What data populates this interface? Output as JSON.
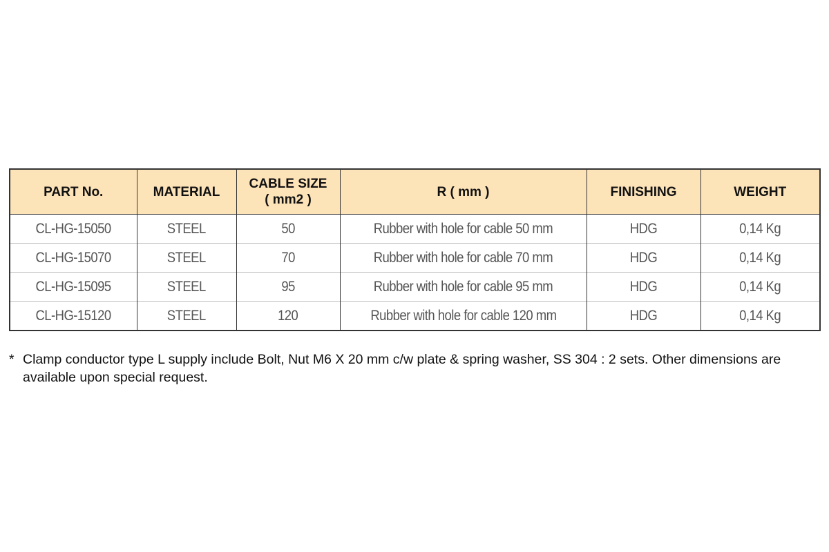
{
  "table": {
    "headers": [
      "PART No.",
      "MATERIAL",
      "CABLE SIZE\n( mm2 )",
      "R ( mm )",
      "FINISHING",
      "WEIGHT"
    ],
    "header_cable_line1": "CABLE SIZE",
    "header_cable_line2": "( mm2 )",
    "rows": [
      [
        "CL-HG-15050",
        "STEEL",
        "50",
        "Rubber with hole for cable 50 mm",
        "HDG",
        "0,14 Kg"
      ],
      [
        "CL-HG-15070",
        "STEEL",
        "70",
        "Rubber with hole for cable 70 mm",
        "HDG",
        "0,14 Kg"
      ],
      [
        "CL-HG-15095",
        "STEEL",
        "95",
        "Rubber with hole for cable 95 mm",
        "HDG",
        "0,14 Kg"
      ],
      [
        "CL-HG-15120",
        "STEEL",
        "120",
        "Rubber with hole for cable 120 mm",
        "HDG",
        "0,14 Kg"
      ]
    ]
  },
  "note": {
    "marker": "*",
    "text": "Clamp conductor type L supply include Bolt, Nut M6 X 20 mm c/w plate & spring washer, SS 304 : 2 sets. Other dimensions are available upon special request."
  },
  "colors": {
    "header_bg": "#fde3b8",
    "border": "#333333",
    "body_text": "#555555"
  }
}
